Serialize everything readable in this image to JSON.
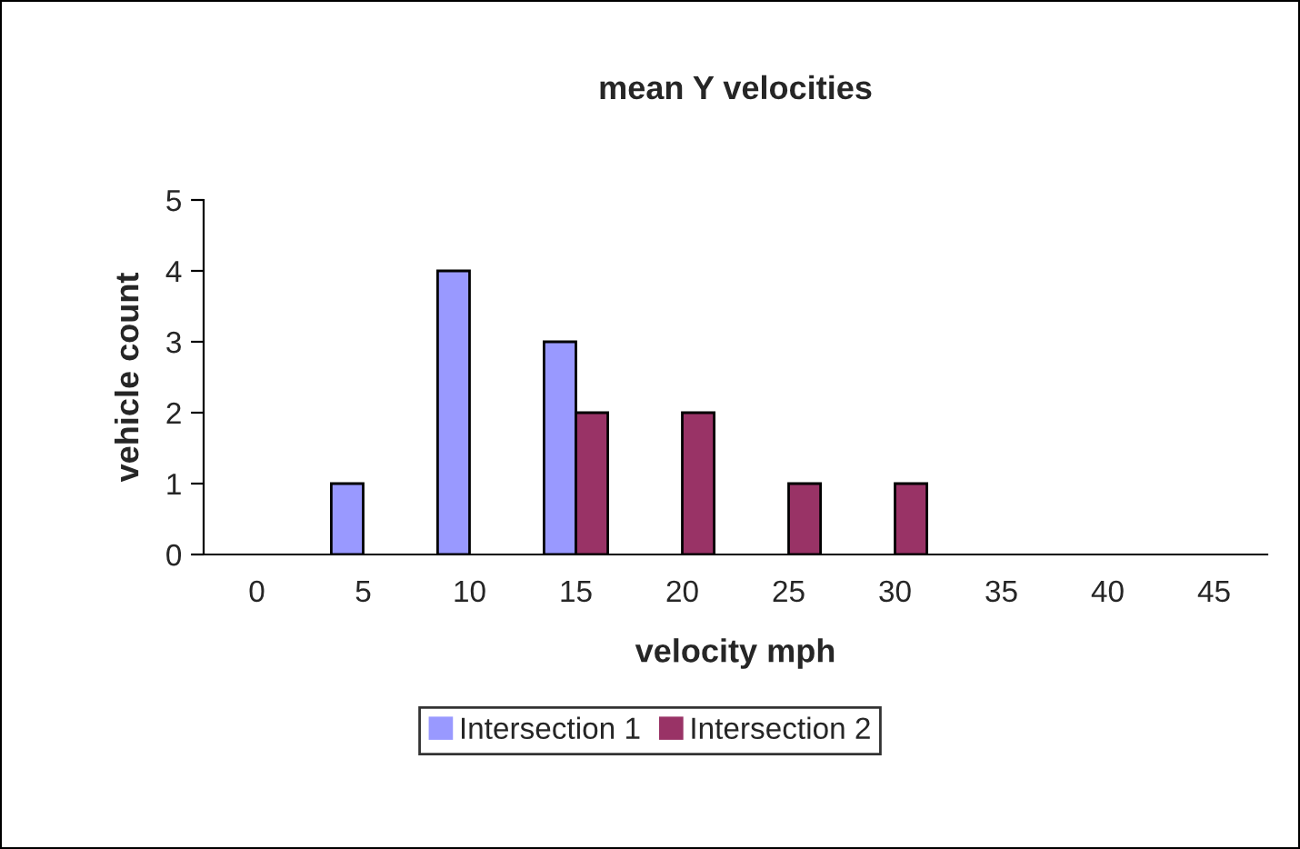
{
  "chart_data": {
    "type": "bar",
    "title": "mean Y velocities",
    "xlabel": "velocity mph",
    "ylabel": "vehicle count",
    "categories": [
      "0",
      "5",
      "10",
      "15",
      "20",
      "25",
      "30",
      "35",
      "40",
      "45"
    ],
    "series": [
      {
        "name": "Intersection 1",
        "color": "#9999ff",
        "values": [
          0,
          1,
          4,
          3,
          0,
          0,
          0,
          0,
          0,
          0
        ]
      },
      {
        "name": "Intersection 2",
        "color": "#993366",
        "values": [
          0,
          0,
          0,
          2,
          2,
          1,
          1,
          0,
          0,
          0
        ]
      }
    ],
    "ylim": [
      0,
      5
    ],
    "yticks": [
      0,
      1,
      2,
      3,
      4,
      5
    ],
    "grid": false,
    "legend": "bottom"
  }
}
